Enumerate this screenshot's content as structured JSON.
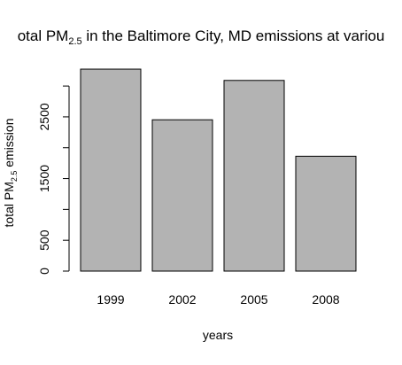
{
  "chart_data": {
    "type": "bar",
    "title": {
      "prefix": "otal PM",
      "subscript": "2.5",
      "suffix": " in the Baltimore City, MD emissions at variou"
    },
    "xlabel": "years",
    "ylabel": {
      "prefix": "total PM",
      "subscript": "2.5",
      "suffix": " emission"
    },
    "categories": [
      "1999",
      "2002",
      "2005",
      "2008"
    ],
    "values": [
      3274,
      2453,
      3091,
      1862
    ],
    "ylim": [
      0,
      3300
    ],
    "yticks": [
      0,
      500,
      1000,
      1500,
      2000,
      2500,
      3000
    ],
    "ytick_labels": [
      "0",
      "500",
      "",
      "1500",
      "",
      "2500",
      ""
    ],
    "bar_color": "#b3b3b3",
    "bar_border": "#000000",
    "grid": false,
    "legend": "none"
  }
}
